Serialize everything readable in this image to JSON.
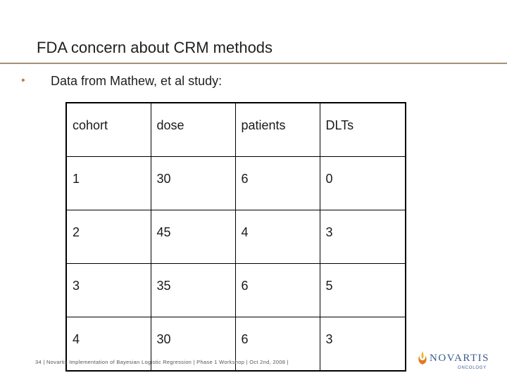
{
  "slide": {
    "title": "FDA concern about CRM methods",
    "bullet_marker": "•",
    "bullet_text": "Data from Mathew, et al study:"
  },
  "table": {
    "headers": [
      "cohort",
      "dose",
      "patients",
      "DLTs"
    ],
    "rows": [
      [
        "1",
        "30",
        "6",
        "0"
      ],
      [
        "2",
        "45",
        "4",
        "3"
      ],
      [
        "3",
        "35",
        "6",
        "5"
      ],
      [
        "4",
        "30",
        "6",
        "3"
      ]
    ]
  },
  "footer": {
    "text": "34 | Novartis Implementation of Bayesian Logistic Regression | Phase 1 Workshop | Oct 2nd, 2008 |"
  },
  "logo": {
    "wordmark": "NOVARTIS",
    "subtitle": "ONCOLOGY",
    "colors": {
      "brand_blue": "#3d5a8c",
      "flame_orange": "#e07b1f",
      "flame_yellow": "#f2b01e"
    }
  },
  "colors": {
    "title_rule": "#a4907a",
    "bullet": "#b5835a"
  },
  "icons": [
    "novartis-flame-icon"
  ]
}
